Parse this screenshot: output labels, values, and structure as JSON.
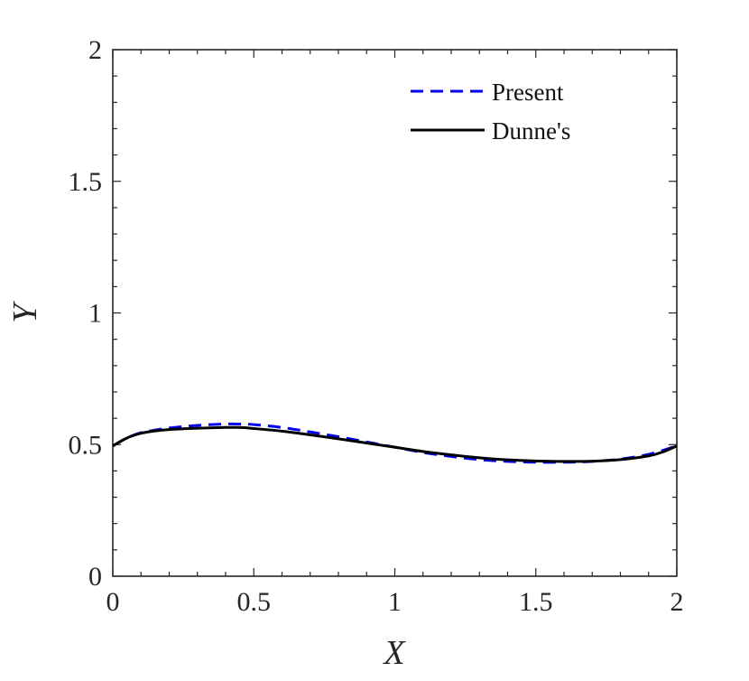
{
  "chart_data": {
    "type": "line",
    "title": "",
    "xlabel": "X",
    "ylabel": "Y",
    "xlim": [
      0,
      2
    ],
    "ylim": [
      0,
      2
    ],
    "xticks": [
      "0",
      "0.5",
      "1",
      "1.5",
      "2"
    ],
    "yticks": [
      "0",
      "0.5",
      "1",
      "1.5",
      "2"
    ],
    "grid": false,
    "legend_position": "top-right",
    "series": [
      {
        "name": "Present",
        "style": "dashed",
        "color": "#0000ee",
        "x": [
          0,
          0.05,
          0.1,
          0.15,
          0.2,
          0.3,
          0.4,
          0.45,
          0.5,
          0.6,
          0.7,
          0.8,
          0.9,
          1.0,
          1.1,
          1.2,
          1.3,
          1.4,
          1.5,
          1.6,
          1.7,
          1.8,
          1.9,
          2.0
        ],
        "y": [
          0.495,
          0.525,
          0.545,
          0.555,
          0.563,
          0.573,
          0.578,
          0.578,
          0.576,
          0.565,
          0.548,
          0.53,
          0.51,
          0.49,
          0.47,
          0.455,
          0.443,
          0.436,
          0.433,
          0.433,
          0.436,
          0.445,
          0.463,
          0.495
        ]
      },
      {
        "name": "Dunne's",
        "style": "solid",
        "color": "#000000",
        "x": [
          0,
          0.05,
          0.1,
          0.15,
          0.2,
          0.3,
          0.4,
          0.45,
          0.5,
          0.6,
          0.7,
          0.8,
          0.9,
          1.0,
          1.1,
          1.2,
          1.3,
          1.4,
          1.5,
          1.6,
          1.7,
          1.8,
          1.9,
          1.95,
          2.0
        ],
        "y": [
          0.495,
          0.525,
          0.543,
          0.552,
          0.557,
          0.562,
          0.565,
          0.565,
          0.561,
          0.551,
          0.537,
          0.522,
          0.506,
          0.49,
          0.474,
          0.461,
          0.45,
          0.442,
          0.438,
          0.436,
          0.437,
          0.443,
          0.457,
          0.472,
          0.495
        ]
      }
    ]
  }
}
